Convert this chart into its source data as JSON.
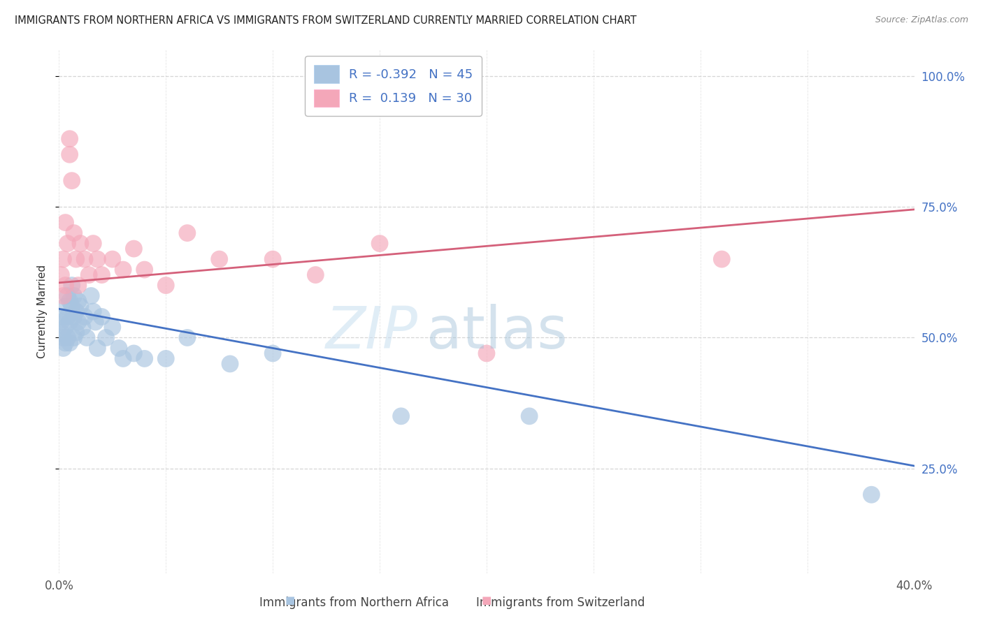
{
  "title": "IMMIGRANTS FROM NORTHERN AFRICA VS IMMIGRANTS FROM SWITZERLAND CURRENTLY MARRIED CORRELATION CHART",
  "source": "Source: ZipAtlas.com",
  "xlabel_blue": "Immigrants from Northern Africa",
  "xlabel_pink": "Immigrants from Switzerland",
  "ylabel": "Currently Married",
  "R_blue": -0.392,
  "N_blue": 45,
  "R_pink": 0.139,
  "N_pink": 30,
  "xlim": [
    0.0,
    0.4
  ],
  "ylim": [
    0.05,
    1.05
  ],
  "xticks": [
    0.0,
    0.05,
    0.1,
    0.15,
    0.2,
    0.25,
    0.3,
    0.35,
    0.4
  ],
  "yticks": [
    0.25,
    0.5,
    0.75,
    1.0
  ],
  "blue_color": "#a8c4e0",
  "pink_color": "#f4a7b9",
  "blue_line_color": "#4472C4",
  "pink_line_color": "#d4607a",
  "watermark_zip": "ZIP",
  "watermark_atlas": "atlas",
  "blue_x": [
    0.001,
    0.001,
    0.002,
    0.002,
    0.002,
    0.003,
    0.003,
    0.003,
    0.004,
    0.004,
    0.004,
    0.005,
    0.005,
    0.005,
    0.006,
    0.006,
    0.007,
    0.007,
    0.007,
    0.008,
    0.008,
    0.009,
    0.009,
    0.01,
    0.011,
    0.012,
    0.013,
    0.015,
    0.016,
    0.017,
    0.018,
    0.02,
    0.022,
    0.025,
    0.028,
    0.03,
    0.035,
    0.04,
    0.05,
    0.06,
    0.08,
    0.1,
    0.16,
    0.22,
    0.38
  ],
  "blue_y": [
    0.53,
    0.51,
    0.54,
    0.5,
    0.48,
    0.56,
    0.52,
    0.49,
    0.58,
    0.54,
    0.5,
    0.57,
    0.53,
    0.49,
    0.6,
    0.56,
    0.58,
    0.54,
    0.5,
    0.55,
    0.51,
    0.57,
    0.53,
    0.56,
    0.52,
    0.54,
    0.5,
    0.58,
    0.55,
    0.53,
    0.48,
    0.54,
    0.5,
    0.52,
    0.48,
    0.46,
    0.47,
    0.46,
    0.46,
    0.5,
    0.45,
    0.47,
    0.35,
    0.35,
    0.2
  ],
  "pink_x": [
    0.001,
    0.002,
    0.002,
    0.003,
    0.003,
    0.004,
    0.005,
    0.005,
    0.006,
    0.007,
    0.008,
    0.009,
    0.01,
    0.012,
    0.014,
    0.016,
    0.018,
    0.02,
    0.025,
    0.03,
    0.035,
    0.04,
    0.05,
    0.06,
    0.075,
    0.1,
    0.12,
    0.15,
    0.2,
    0.31
  ],
  "pink_y": [
    0.62,
    0.58,
    0.65,
    0.6,
    0.72,
    0.68,
    0.85,
    0.88,
    0.8,
    0.7,
    0.65,
    0.6,
    0.68,
    0.65,
    0.62,
    0.68,
    0.65,
    0.62,
    0.65,
    0.63,
    0.67,
    0.63,
    0.6,
    0.7,
    0.65,
    0.65,
    0.62,
    0.68,
    0.47,
    0.65
  ],
  "blue_trend_x": [
    0.0,
    0.4
  ],
  "blue_trend_y": [
    0.555,
    0.255
  ],
  "pink_trend_x": [
    0.0,
    0.4
  ],
  "pink_trend_y": [
    0.605,
    0.745
  ]
}
